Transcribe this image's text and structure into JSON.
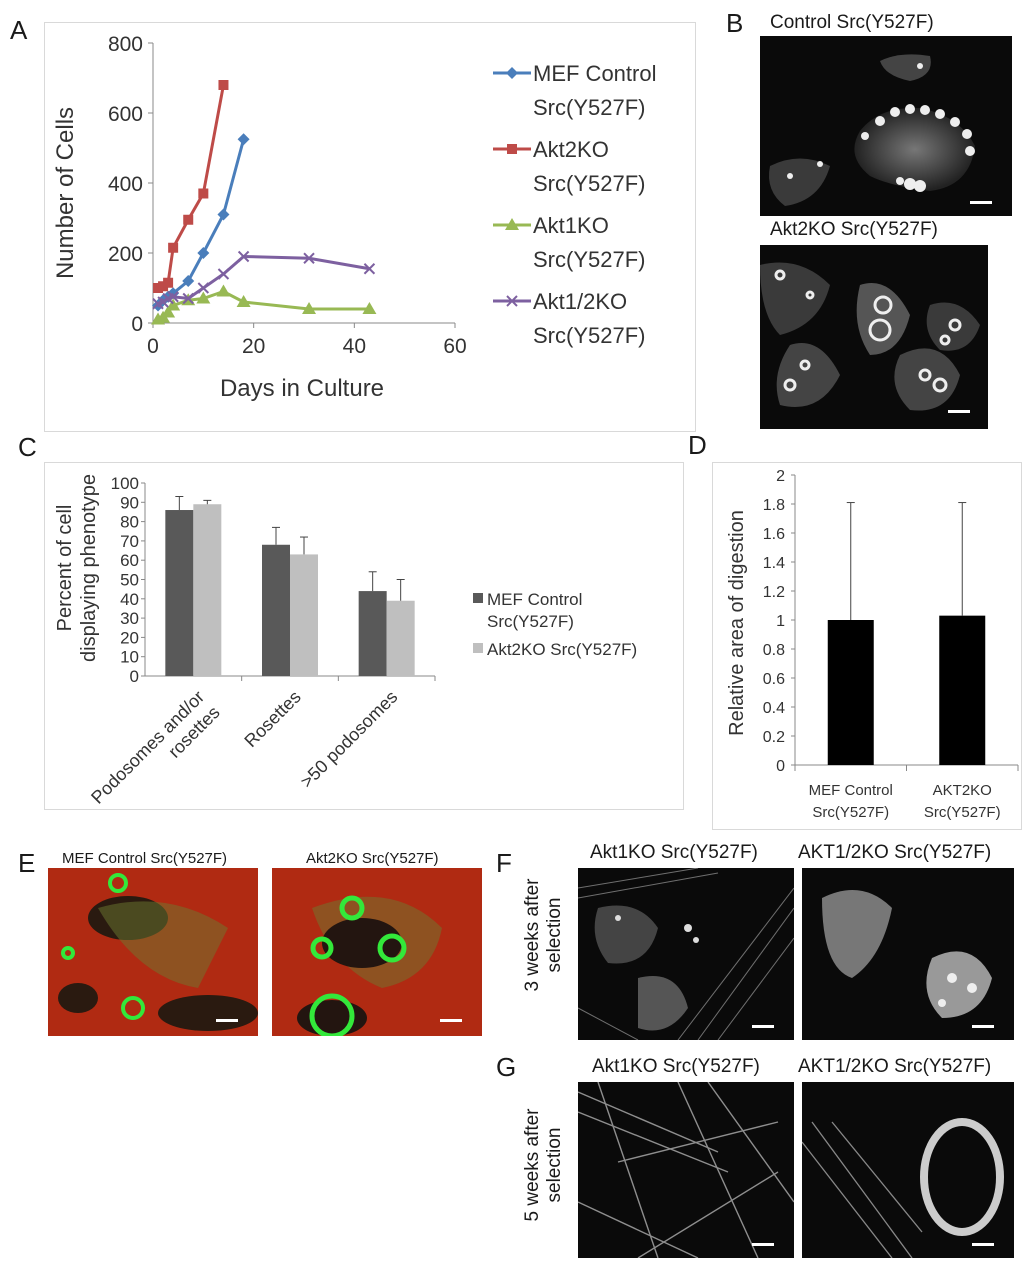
{
  "panels": {
    "A": "A",
    "B": "B",
    "C": "C",
    "D": "D",
    "E": "E",
    "F": "F",
    "G": "G"
  },
  "chart_data": [
    {
      "panel": "A",
      "type": "line",
      "xlabel": "Days in Culture",
      "ylabel": "Number of Cells",
      "xlim": [
        0,
        60
      ],
      "ylim": [
        0,
        800
      ],
      "xticks": [
        0,
        20,
        40,
        60
      ],
      "yticks": [
        0,
        200,
        400,
        600,
        800
      ],
      "grid": false,
      "legend_position": "right",
      "series": [
        {
          "name_line1": "MEF Control",
          "name_line2": "Src(Y527F)",
          "color": "#4a7ebb",
          "marker": "diamond",
          "x": [
            1,
            2,
            3,
            4,
            7,
            10,
            14,
            18
          ],
          "y": [
            50,
            65,
            75,
            85,
            120,
            200,
            310,
            525
          ]
        },
        {
          "name_line1": "Akt2KO",
          "name_line2": "Src(Y527F)",
          "color": "#be4b48",
          "marker": "square",
          "x": [
            1,
            2,
            3,
            4,
            7,
            10,
            14
          ],
          "y": [
            100,
            105,
            115,
            215,
            295,
            370,
            680
          ]
        },
        {
          "name_line1": "Akt1KO",
          "name_line2": "Src(Y527F)",
          "color": "#98b954",
          "marker": "triangle",
          "x": [
            1,
            2,
            3,
            4,
            7,
            10,
            14,
            18,
            31,
            43
          ],
          "y": [
            10,
            15,
            30,
            50,
            65,
            70,
            90,
            60,
            40,
            40
          ]
        },
        {
          "name_line1": "Akt1/2KO",
          "name_line2": "Src(Y527F)",
          "color": "#7d60a0",
          "marker": "x",
          "x": [
            1,
            2,
            3,
            4,
            7,
            10,
            14,
            18,
            31,
            43
          ],
          "y": [
            55,
            60,
            70,
            75,
            70,
            100,
            140,
            190,
            185,
            155
          ]
        }
      ]
    },
    {
      "panel": "C",
      "type": "bar",
      "ylabel_line1": "Percent of cell",
      "ylabel_line2": "displaying phenotype",
      "ylim": [
        0,
        100
      ],
      "yticks": [
        0,
        10,
        20,
        30,
        40,
        50,
        60,
        70,
        80,
        90,
        100
      ],
      "categories": [
        "Podosomes and/or rosettes",
        "Rosettes",
        ">50 podosomes"
      ],
      "category_lines": [
        [
          "Podosomes and/or",
          "rosettes"
        ],
        [
          "Rosettes"
        ],
        [
          ">50 podosomes"
        ]
      ],
      "legend_position": "right",
      "series": [
        {
          "name_line1": "MEF Control",
          "name_line2": "Src(Y527F)",
          "color": "#595959",
          "values": [
            86,
            68,
            44
          ],
          "errors": [
            7,
            9,
            10
          ]
        },
        {
          "name_line1": "Akt2KO Src(Y527F)",
          "name_line2": "",
          "color": "#bfbfbf",
          "values": [
            89,
            63,
            39
          ],
          "errors": [
            2,
            9,
            11
          ]
        }
      ]
    },
    {
      "panel": "D",
      "type": "bar",
      "ylabel": "Relative area of digestion",
      "ylim": [
        0,
        2
      ],
      "yticks": [
        "0",
        "0.2",
        "0.4",
        "0.6",
        "0.8",
        "1",
        "1.2",
        "1.4",
        "1.6",
        "1.8",
        "2"
      ],
      "categories": [
        [
          "MEF Control",
          "Src(Y527F)"
        ],
        [
          "AKT2KO",
          "Src(Y527F)"
        ]
      ],
      "values": [
        1.0,
        1.03
      ],
      "errors": [
        0.81,
        0.78
      ],
      "color": "#000000"
    }
  ],
  "images": {
    "B": {
      "top_label": "Control Src(Y527F)",
      "bottom_label": "Akt2KO Src(Y527F)"
    },
    "E": {
      "left_label": "MEF Control Src(Y527F)",
      "right_label": "Akt2KO Src(Y527F)"
    },
    "F": {
      "side_label_line1": "3 weeks after",
      "side_label_line2": "selection",
      "left_label": "Akt1KO Src(Y527F)",
      "right_label": "AKT1/2KO Src(Y527F)"
    },
    "G": {
      "side_label_line1": "5 weeks after",
      "side_label_line2": "selection",
      "left_label": "Akt1KO Src(Y527F)",
      "right_label": "AKT1/2KO Src(Y527F)"
    }
  }
}
